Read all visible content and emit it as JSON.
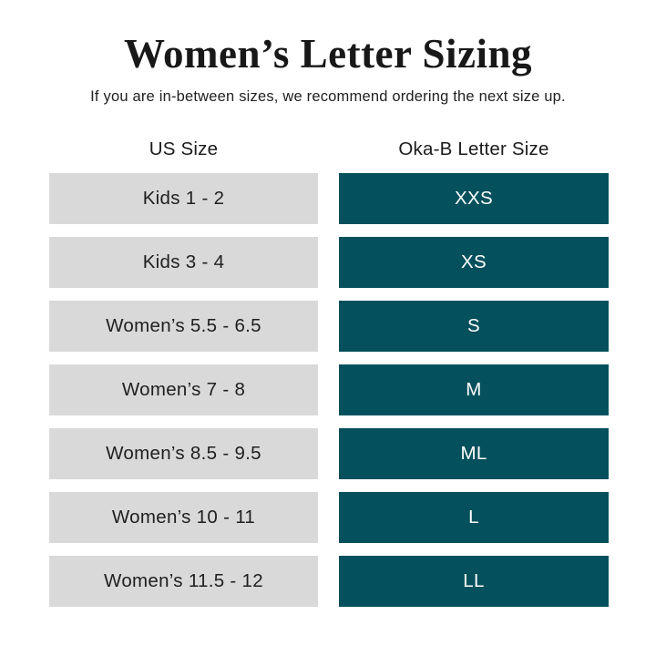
{
  "page": {
    "title": "Women’s Letter Sizing",
    "subtitle": "If you are in-between sizes, we recommend ordering the next size up."
  },
  "table": {
    "columns": [
      {
        "label": "US Size"
      },
      {
        "label": "Oka-B Letter Size"
      }
    ],
    "rows": [
      {
        "us_size": "Kids 1 - 2",
        "letter_size": "XXS"
      },
      {
        "us_size": "Kids 3 - 4",
        "letter_size": "XS"
      },
      {
        "us_size": "Women’s 5.5 - 6.5",
        "letter_size": "S"
      },
      {
        "us_size": "Women’s 7 - 8",
        "letter_size": "M"
      },
      {
        "us_size": "Women’s 8.5 - 9.5",
        "letter_size": "ML"
      },
      {
        "us_size": "Women’s 10 - 11",
        "letter_size": "L"
      },
      {
        "us_size": "Women’s 11.5 - 12",
        "letter_size": "LL"
      }
    ]
  },
  "colors": {
    "letter_cell_background": "#04505c",
    "us_cell_background": "#d9d9d9",
    "text_dark": "#1f1f1f",
    "text_light": "#ffffff",
    "page_background": "#ffffff"
  },
  "chart_data": {
    "type": "table",
    "title": "Women’s Letter Sizing",
    "subtitle": "If you are in-between sizes, we recommend ordering the next size up.",
    "columns": [
      "US Size",
      "Oka-B Letter Size"
    ],
    "rows": [
      [
        "Kids 1 - 2",
        "XXS"
      ],
      [
        "Kids 3 - 4",
        "XS"
      ],
      [
        "Women’s 5.5 - 6.5",
        "S"
      ],
      [
        "Women’s 7 - 8",
        "M"
      ],
      [
        "Women’s 8.5 - 9.5",
        "ML"
      ],
      [
        "Women’s 10 - 11",
        "L"
      ],
      [
        "Women’s 11.5 - 12",
        "LL"
      ]
    ],
    "legend_position": "none",
    "grid": false
  }
}
